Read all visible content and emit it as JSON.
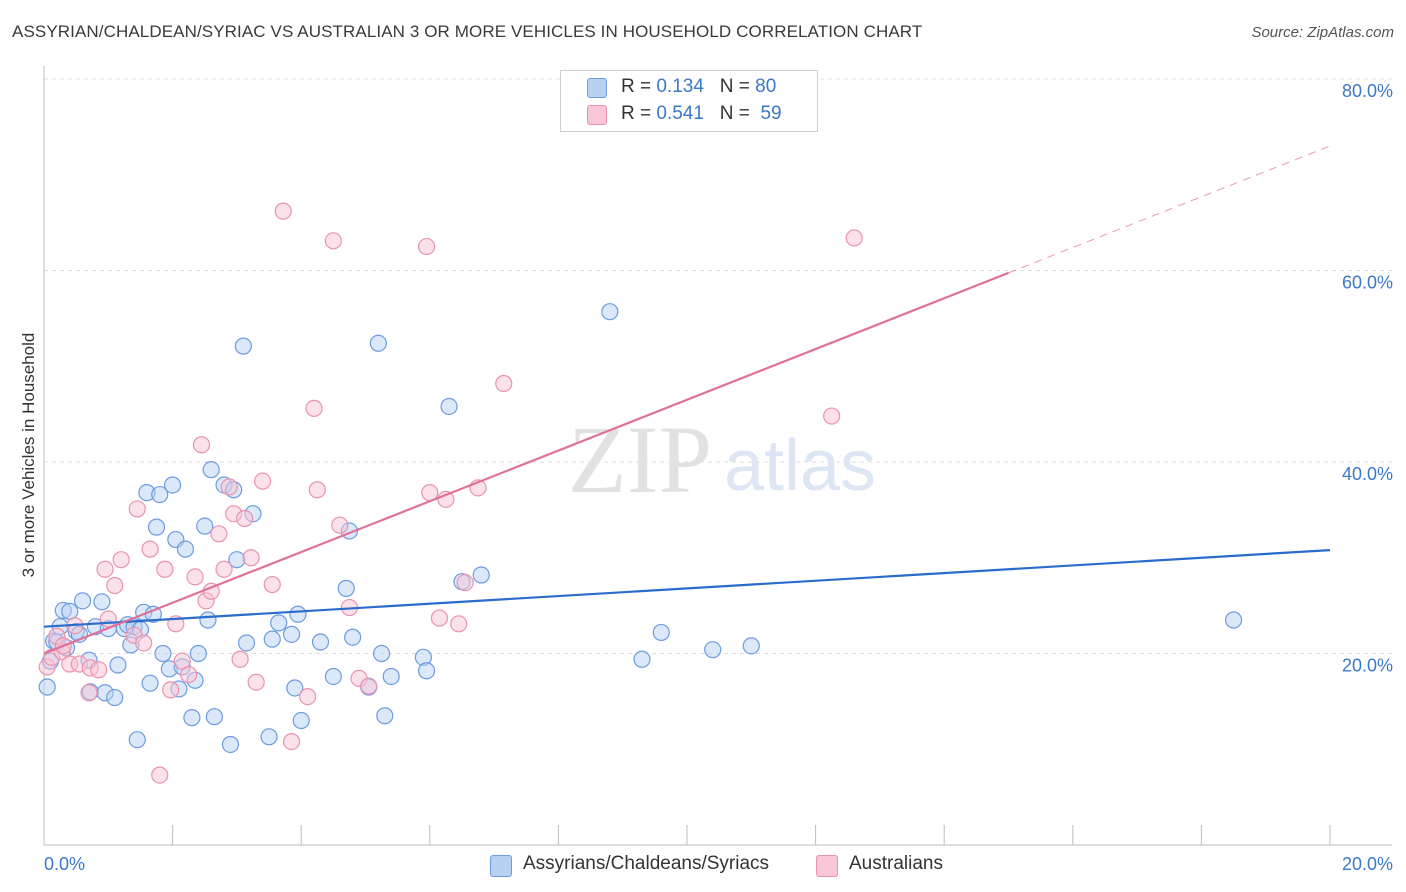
{
  "title": "ASSYRIAN/CHALDEAN/SYRIAC VS AUSTRALIAN 3 OR MORE VEHICLES IN HOUSEHOLD CORRELATION CHART",
  "source": "Source: ZipAtlas.com",
  "watermark": {
    "zip": "ZIP",
    "atlas": "atlas"
  },
  "stats": {
    "r_label": "R =",
    "n_label": "N =",
    "rows": [
      {
        "r": "0.134",
        "n": "80"
      },
      {
        "r": "0.541",
        "n": "59"
      }
    ]
  },
  "colors": {
    "blue_fill": "#b8d1f3",
    "blue_stroke": "#6d9be0",
    "blue_line": "#2a6ccc",
    "pink_fill": "#f8c6d6",
    "pink_stroke": "#ea93ad",
    "pink_line": "#e07098",
    "tick_label": "#3b78c8",
    "grid": "#dddddd"
  },
  "chart_data": {
    "type": "scatter",
    "title": "ASSYRIAN/CHALDEAN/SYRIAC VS AUSTRALIAN 3 OR MORE VEHICLES IN HOUSEHOLD CORRELATION CHART",
    "xlabel": "",
    "ylabel": "3 or more Vehicles in Household",
    "xlim": [
      0,
      20
    ],
    "ylim": [
      0,
      80
    ],
    "x_tick_labels": [
      "0.0%",
      "20.0%"
    ],
    "y_ticks": [
      20,
      40,
      60,
      80
    ],
    "y_tick_labels": [
      "20.0%",
      "40.0%",
      "60.0%",
      "80.0%"
    ],
    "grid": "horizontal dashed",
    "legend_position": "bottom-center",
    "series": [
      {
        "name": "Assyrians/Chaldeans/Syriacs",
        "color": "blue",
        "trend": {
          "x0": 0,
          "y0": 22.8,
          "x1": 20,
          "y1": 30.8,
          "dash_from": null
        },
        "points": [
          [
            0.05,
            16.5
          ],
          [
            0.1,
            19.2
          ],
          [
            0.15,
            21.3
          ],
          [
            0.2,
            21.2
          ],
          [
            0.25,
            22.8
          ],
          [
            0.3,
            24.5
          ],
          [
            0.35,
            20.6
          ],
          [
            0.4,
            24.4
          ],
          [
            0.5,
            22.3
          ],
          [
            0.55,
            22.0
          ],
          [
            0.6,
            25.5
          ],
          [
            0.7,
            19.3
          ],
          [
            0.72,
            16.0
          ],
          [
            0.8,
            22.8
          ],
          [
            0.9,
            25.4
          ],
          [
            0.95,
            15.9
          ],
          [
            1.0,
            22.6
          ],
          [
            1.1,
            15.4
          ],
          [
            1.15,
            18.8
          ],
          [
            1.25,
            22.6
          ],
          [
            1.3,
            23.0
          ],
          [
            1.35,
            20.9
          ],
          [
            1.4,
            22.8
          ],
          [
            1.45,
            11.0
          ],
          [
            1.5,
            22.5
          ],
          [
            1.55,
            24.3
          ],
          [
            1.6,
            36.8
          ],
          [
            1.65,
            16.9
          ],
          [
            1.7,
            24.1
          ],
          [
            1.75,
            33.2
          ],
          [
            1.8,
            36.6
          ],
          [
            1.85,
            20.0
          ],
          [
            1.95,
            18.4
          ],
          [
            2.0,
            37.6
          ],
          [
            2.05,
            31.9
          ],
          [
            2.1,
            16.3
          ],
          [
            2.15,
            18.6
          ],
          [
            2.2,
            30.9
          ],
          [
            2.3,
            13.3
          ],
          [
            2.35,
            17.2
          ],
          [
            2.4,
            20.0
          ],
          [
            2.5,
            33.3
          ],
          [
            2.55,
            23.5
          ],
          [
            2.6,
            39.2
          ],
          [
            2.65,
            13.4
          ],
          [
            2.8,
            37.6
          ],
          [
            2.9,
            10.5
          ],
          [
            2.95,
            37.1
          ],
          [
            3.0,
            29.8
          ],
          [
            3.1,
            52.1
          ],
          [
            3.15,
            21.1
          ],
          [
            3.25,
            34.6
          ],
          [
            3.5,
            11.3
          ],
          [
            3.55,
            21.5
          ],
          [
            3.65,
            23.2
          ],
          [
            3.85,
            22.0
          ],
          [
            3.9,
            16.4
          ],
          [
            3.95,
            24.1
          ],
          [
            4.0,
            13.0
          ],
          [
            4.3,
            21.2
          ],
          [
            4.5,
            17.6
          ],
          [
            4.7,
            26.8
          ],
          [
            4.75,
            32.8
          ],
          [
            4.8,
            21.7
          ],
          [
            5.05,
            16.5
          ],
          [
            5.2,
            52.4
          ],
          [
            5.25,
            20.0
          ],
          [
            5.3,
            13.5
          ],
          [
            5.4,
            17.6
          ],
          [
            5.9,
            19.6
          ],
          [
            5.95,
            18.2
          ],
          [
            6.3,
            45.8
          ],
          [
            6.5,
            27.5
          ],
          [
            6.8,
            28.2
          ],
          [
            8.8,
            55.7
          ],
          [
            9.3,
            19.4
          ],
          [
            9.6,
            22.2
          ],
          [
            10.4,
            20.4
          ],
          [
            11.0,
            20.8
          ],
          [
            18.5,
            23.5
          ]
        ]
      },
      {
        "name": "Australians",
        "color": "pink",
        "trend": {
          "x0": 0,
          "y0": 20.0,
          "x1": 20,
          "y1": 73.0,
          "dash_from": 15.0
        },
        "points": [
          [
            0.05,
            18.6
          ],
          [
            0.12,
            19.6
          ],
          [
            0.2,
            21.8
          ],
          [
            0.28,
            20.2
          ],
          [
            0.4,
            18.9
          ],
          [
            0.48,
            22.9
          ],
          [
            0.55,
            18.9
          ],
          [
            0.7,
            15.9
          ],
          [
            0.72,
            18.5
          ],
          [
            0.85,
            18.3
          ],
          [
            0.95,
            28.8
          ],
          [
            1.1,
            27.1
          ],
          [
            1.2,
            29.8
          ],
          [
            1.4,
            21.9
          ],
          [
            1.45,
            35.1
          ],
          [
            1.55,
            21.1
          ],
          [
            1.65,
            30.9
          ],
          [
            1.8,
            7.3
          ],
          [
            1.88,
            28.8
          ],
          [
            1.97,
            16.2
          ],
          [
            2.05,
            23.1
          ],
          [
            2.15,
            19.2
          ],
          [
            2.25,
            17.8
          ],
          [
            2.35,
            28.0
          ],
          [
            2.45,
            41.8
          ],
          [
            2.52,
            25.5
          ],
          [
            2.6,
            26.5
          ],
          [
            2.72,
            32.5
          ],
          [
            2.8,
            28.8
          ],
          [
            2.88,
            37.4
          ],
          [
            2.95,
            34.6
          ],
          [
            3.05,
            19.4
          ],
          [
            3.12,
            34.1
          ],
          [
            3.22,
            30.0
          ],
          [
            3.3,
            17.0
          ],
          [
            3.4,
            38.0
          ],
          [
            3.55,
            27.2
          ],
          [
            3.72,
            66.2
          ],
          [
            3.85,
            10.8
          ],
          [
            4.1,
            15.5
          ],
          [
            4.2,
            45.6
          ],
          [
            4.25,
            37.1
          ],
          [
            4.5,
            63.1
          ],
          [
            4.6,
            33.4
          ],
          [
            4.75,
            24.8
          ],
          [
            4.9,
            17.4
          ],
          [
            5.05,
            16.6
          ],
          [
            5.95,
            62.5
          ],
          [
            6.0,
            36.8
          ],
          [
            6.15,
            23.7
          ],
          [
            6.25,
            36.1
          ],
          [
            6.45,
            23.1
          ],
          [
            6.55,
            27.4
          ],
          [
            6.75,
            37.3
          ],
          [
            7.15,
            48.2
          ],
          [
            12.25,
            44.8
          ],
          [
            12.6,
            63.4
          ],
          [
            0.3,
            20.8
          ],
          [
            1.0,
            23.6
          ]
        ]
      }
    ]
  }
}
